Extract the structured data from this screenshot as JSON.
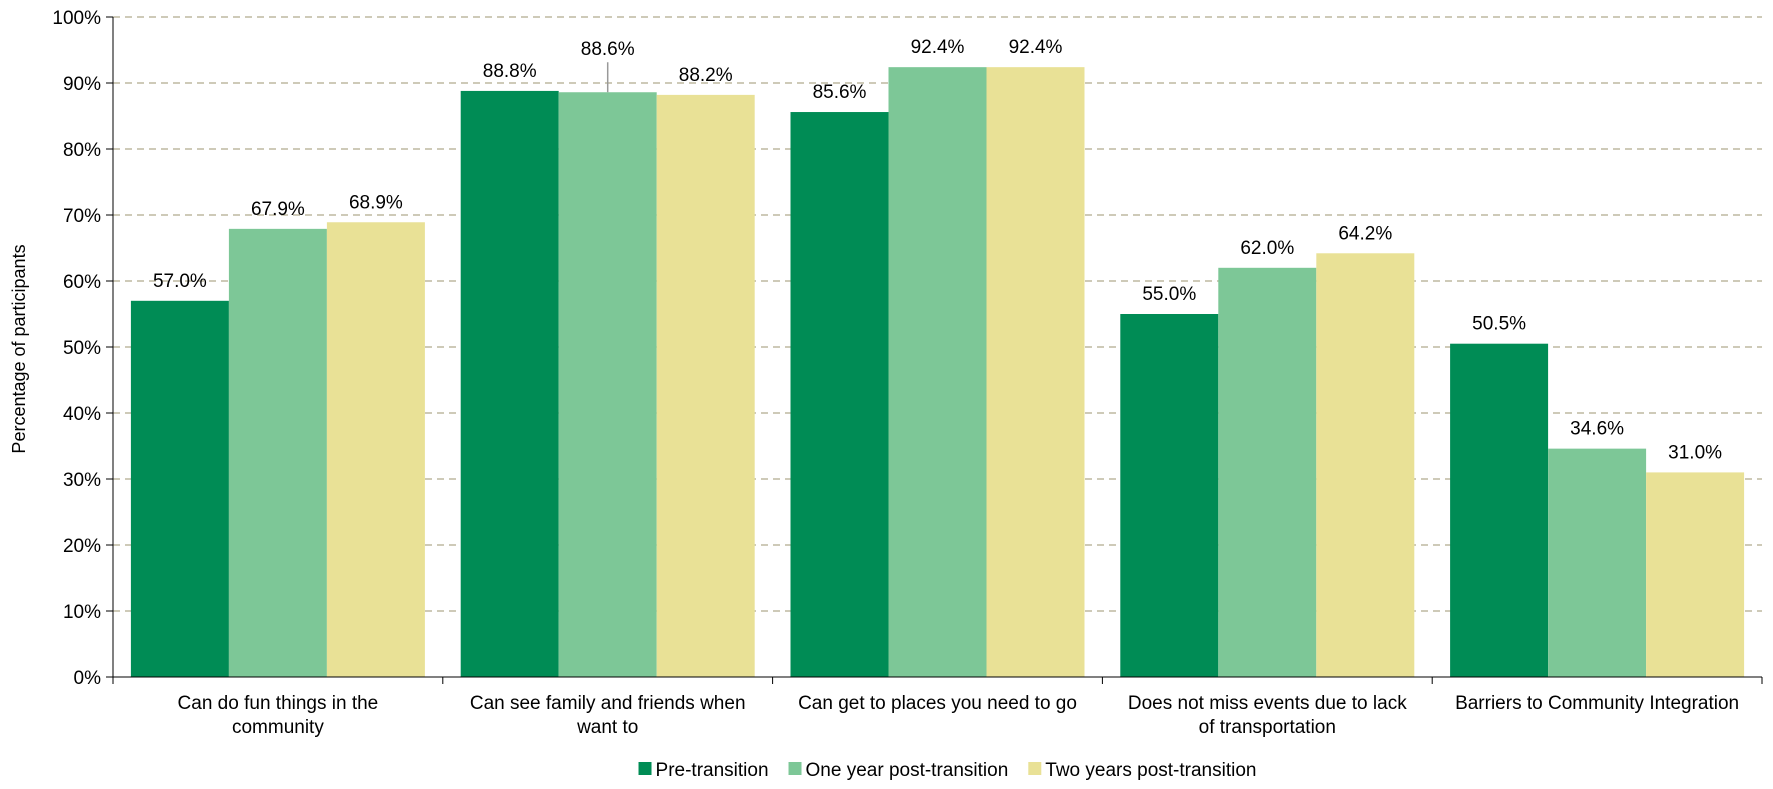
{
  "chart_data": {
    "type": "bar",
    "title": "",
    "xlabel": "",
    "ylabel": "Percentage of participants",
    "ylim": [
      0,
      100
    ],
    "yticks": [
      0,
      10,
      20,
      30,
      40,
      50,
      60,
      70,
      80,
      90,
      100
    ],
    "ytick_labels": [
      "0%",
      "10%",
      "20%",
      "30%",
      "40%",
      "50%",
      "60%",
      "70%",
      "80%",
      "90%",
      "100%"
    ],
    "grid": true,
    "legend_position": "bottom",
    "categories": [
      [
        "Can do fun things in the",
        "community"
      ],
      [
        "Can see family and friends when",
        "want to"
      ],
      [
        "Can get to places you need to go"
      ],
      [
        "Does not miss events due to lack",
        "of transportation"
      ],
      [
        "Barriers to Community Integration"
      ]
    ],
    "series": [
      {
        "name": "Pre-transition",
        "color": "#008C55",
        "values": [
          57.0,
          88.8,
          85.6,
          55.0,
          50.5
        ],
        "labels": [
          "57.0%",
          "88.8%",
          "85.6%",
          "55.0%",
          "50.5%"
        ]
      },
      {
        "name": "One year post-transition",
        "color": "#7DC797",
        "values": [
          67.9,
          88.6,
          92.4,
          62.0,
          34.6
        ],
        "labels": [
          "67.9%",
          "88.6%",
          "92.4%",
          "62.0%",
          "34.6%"
        ]
      },
      {
        "name": "Two years post-transition",
        "color": "#E9E196",
        "values": [
          68.9,
          88.2,
          92.4,
          64.2,
          31.0
        ],
        "labels": [
          "68.9%",
          "88.2%",
          "92.4%",
          "64.2%",
          "31.0%"
        ]
      }
    ],
    "gridline_color": "#BDB8A0",
    "axis_color": "#000000"
  }
}
